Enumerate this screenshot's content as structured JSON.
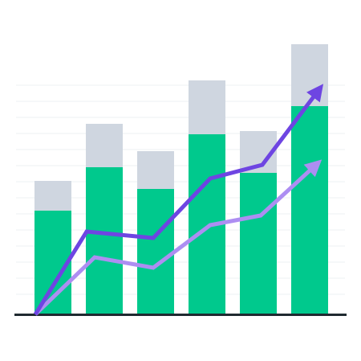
{
  "chart_data": {
    "type": "bar",
    "categories": [
      null,
      null,
      null,
      null,
      null,
      null
    ],
    "ylim": [
      0,
      340
    ],
    "xlim": [
      0,
      450
    ],
    "stacked": true,
    "series": [
      {
        "color": "#00c98d",
        "values": [
          129,
          183,
          156,
          224,
          176,
          259
        ]
      },
      {
        "color": "#cfd6e0",
        "values": [
          37,
          54,
          47,
          67,
          52,
          77
        ]
      }
    ],
    "lines": [
      {
        "color": "#6e45e2",
        "x": [
          44,
          108,
          191,
          262,
          327,
          398
        ],
        "values": [
          0,
          103,
          95,
          169,
          186,
          280
        ]
      },
      {
        "color": "#ad8ef2",
        "x": [
          44,
          118,
          191,
          262,
          325,
          395
        ],
        "values": [
          0,
          71,
          58,
          111,
          123,
          187
        ]
      }
    ]
  }
}
